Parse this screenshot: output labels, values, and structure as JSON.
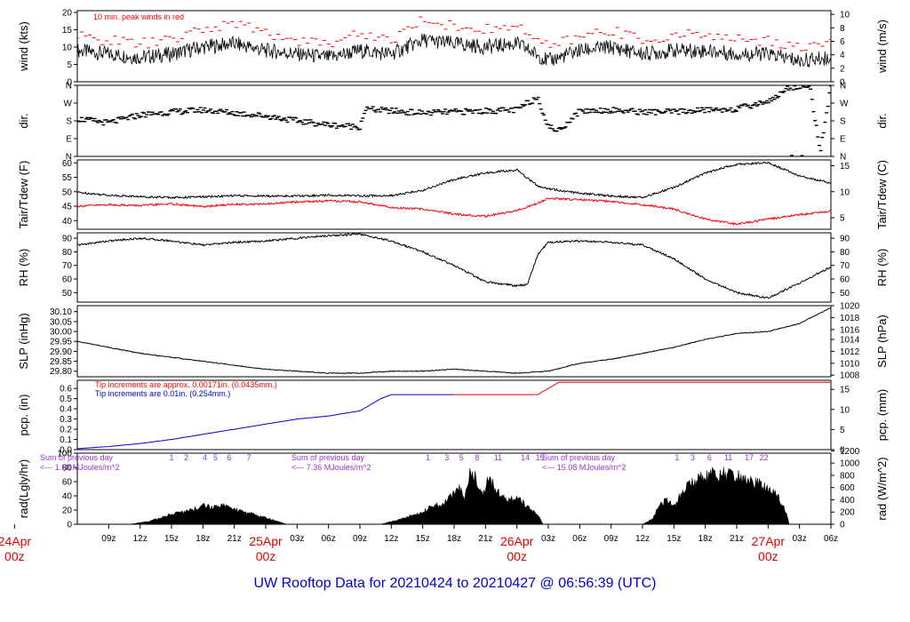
{
  "footer": {
    "title": "UW Rooftop Data for 20210424  to  20210427 @ 06:56:39  (UTC)"
  },
  "colors": {
    "black": "#000000",
    "red": "#ff0000",
    "blue": "#0000cc",
    "purple": "#9933cc",
    "date": "#dd0000"
  },
  "time_axis": {
    "unit": "hours since 2021-04-24 06:00 UTC",
    "range": [
      0,
      72
    ],
    "tick_labels": [
      {
        "t": 3,
        "label": "09z"
      },
      {
        "t": 6,
        "label": "12z"
      },
      {
        "t": 9,
        "label": "15z"
      },
      {
        "t": 12,
        "label": "18z"
      },
      {
        "t": 15,
        "label": "21z"
      },
      {
        "t": 21,
        "label": "03z"
      },
      {
        "t": 24,
        "label": "06z"
      },
      {
        "t": 27,
        "label": "09z"
      },
      {
        "t": 30,
        "label": "12z"
      },
      {
        "t": 33,
        "label": "15z"
      },
      {
        "t": 36,
        "label": "18z"
      },
      {
        "t": 39,
        "label": "21z"
      },
      {
        "t": 45,
        "label": "03z"
      },
      {
        "t": 48,
        "label": "06z"
      },
      {
        "t": 51,
        "label": "09z"
      },
      {
        "t": 54,
        "label": "12z"
      },
      {
        "t": 57,
        "label": "15z"
      },
      {
        "t": 60,
        "label": "18z"
      },
      {
        "t": 63,
        "label": "21z"
      },
      {
        "t": 69,
        "label": "03z"
      },
      {
        "t": 72,
        "label": "06z"
      }
    ],
    "date_labels": [
      {
        "t": -6,
        "date": "24Apr",
        "hour": "00z"
      },
      {
        "t": 18,
        "date": "25Apr",
        "hour": "00z"
      },
      {
        "t": 42,
        "date": "26Apr",
        "hour": "00z"
      },
      {
        "t": 66,
        "date": "27Apr",
        "hour": "00z"
      }
    ]
  },
  "chart_data": [
    {
      "id": "wind",
      "type": "line",
      "ylabel": "wind (kts)",
      "ylabel_right": "wind (m/s)",
      "ylim": [
        0,
        20.5
      ],
      "yticks": [
        0,
        5,
        10,
        15,
        20
      ],
      "right_ticks": [
        {
          "value": 0,
          "label": "0"
        },
        {
          "value": 3.89,
          "label": "2"
        },
        {
          "value": 7.78,
          "label": "4"
        },
        {
          "value": 11.66,
          "label": "6"
        },
        {
          "value": 15.55,
          "label": "8"
        },
        {
          "value": 19.44,
          "label": "10"
        }
      ],
      "annotations": [
        {
          "text": "10 min. peak winds in red",
          "color": "#ff0000"
        }
      ],
      "series": [
        {
          "kind": "line",
          "color": "#000000",
          "x": [
            0,
            3,
            6,
            9,
            12,
            15,
            18,
            21,
            24,
            27,
            30,
            33,
            36,
            39,
            42,
            45,
            48,
            51,
            54,
            57,
            60,
            63,
            66,
            69,
            72
          ],
          "y": [
            9,
            8,
            7,
            8,
            10,
            11,
            9,
            8,
            7,
            9,
            8,
            12,
            11,
            10,
            11,
            6,
            9,
            10,
            8,
            9,
            9,
            8,
            8,
            6,
            7
          ]
        },
        {
          "kind": "dashes",
          "color": "#ff0000",
          "x": [
            0,
            3,
            6,
            9,
            12,
            15,
            18,
            21,
            24,
            27,
            30,
            33,
            36,
            39,
            42,
            45,
            48,
            51,
            54,
            57,
            60,
            63,
            66,
            69,
            72
          ],
          "y": [
            13,
            12,
            11,
            12,
            15,
            17,
            14,
            12,
            11,
            14,
            12,
            18,
            16,
            15,
            16,
            10,
            13,
            15,
            12,
            13,
            14,
            12,
            12,
            10,
            11
          ]
        }
      ]
    },
    {
      "id": "dir",
      "type": "scatter",
      "ylabel": "dir.",
      "ylabel_right": "dir.",
      "ylim": [
        0,
        360
      ],
      "ytick_labels": [
        "N",
        "E",
        "S",
        "W",
        "N"
      ],
      "series": [
        {
          "kind": "dots",
          "color": "#000000",
          "x": [
            0,
            3,
            6,
            9,
            12,
            15,
            18,
            21,
            24,
            27,
            27.5,
            30,
            33,
            36,
            39,
            42,
            43,
            44,
            45,
            46,
            48,
            51,
            54,
            57,
            60,
            63,
            66,
            67,
            68,
            69,
            70,
            71,
            72
          ],
          "y": [
            190,
            170,
            210,
            225,
            235,
            220,
            205,
            180,
            160,
            150,
            240,
            230,
            220,
            225,
            230,
            235,
            270,
            300,
            150,
            130,
            230,
            235,
            225,
            225,
            235,
            240,
            280,
            310,
            350,
            355,
            350,
            25,
            355
          ]
        }
      ]
    },
    {
      "id": "temp",
      "type": "line",
      "ylabel": "Tair/Tdew (F)",
      "ylabel_right": "Tair/Tdew (C)",
      "ylim": [
        37,
        61
      ],
      "yticks": [
        40,
        45,
        50,
        55,
        60
      ],
      "right_ticks": [
        {
          "value": 41,
          "label": "5"
        },
        {
          "value": 50,
          "label": "10"
        },
        {
          "value": 59,
          "label": "15"
        }
      ],
      "series": [
        {
          "kind": "line",
          "name": "Tair",
          "color": "#000000",
          "x": [
            0,
            3,
            6,
            9,
            12,
            15,
            18,
            21,
            24,
            27,
            30,
            33,
            36,
            39,
            42,
            44,
            45,
            48,
            51,
            54,
            57,
            60,
            63,
            66,
            69,
            72
          ],
          "y": [
            49.8,
            48.8,
            48.3,
            48.0,
            48.2,
            48.6,
            48.5,
            48.5,
            48.8,
            48.6,
            48.6,
            50.5,
            54.2,
            56.5,
            57.5,
            52.0,
            51.0,
            49.5,
            48.5,
            48.0,
            51.5,
            56.5,
            59.5,
            60.0,
            55.5,
            53.0
          ]
        },
        {
          "kind": "line",
          "name": "Tdew",
          "color": "#ff0000",
          "x": [
            0,
            3,
            6,
            9,
            12,
            15,
            18,
            21,
            24,
            27,
            30,
            33,
            36,
            39,
            42,
            44,
            45,
            48,
            51,
            54,
            57,
            60,
            63,
            66,
            69,
            72
          ],
          "y": [
            45.0,
            45.5,
            45.2,
            45.8,
            44.8,
            45.7,
            45.7,
            46.5,
            46.8,
            46.5,
            44.5,
            44.0,
            42.3,
            41.5,
            43.5,
            46.0,
            47.7,
            47.2,
            46.6,
            45.5,
            44.0,
            40.5,
            38.8,
            40.5,
            42.0,
            43.3
          ]
        }
      ]
    },
    {
      "id": "rh",
      "type": "line",
      "ylabel": "RH (%)",
      "ylabel_right": "RH (%)",
      "ylim": [
        43,
        94
      ],
      "yticks": [
        50,
        60,
        70,
        80,
        90
      ],
      "series": [
        {
          "kind": "line",
          "color": "#000000",
          "x": [
            0,
            3,
            6,
            9,
            12,
            15,
            18,
            21,
            24,
            27,
            30,
            33,
            36,
            39,
            42,
            43,
            44,
            45,
            48,
            51,
            54,
            57,
            60,
            63,
            66,
            69,
            72
          ],
          "y": [
            85,
            88,
            90,
            88,
            85,
            87,
            88,
            90,
            92,
            93,
            88,
            80,
            70,
            58,
            55,
            56,
            78,
            87,
            88,
            87,
            85,
            75,
            60,
            50,
            46,
            57,
            69
          ]
        }
      ]
    },
    {
      "id": "slp",
      "type": "line",
      "ylabel": "SLP (inHg)",
      "ylabel_right": "SLP (hPa)",
      "ylim": [
        29.772,
        30.13
      ],
      "yticks": [
        29.8,
        29.85,
        29.9,
        29.95,
        30.0,
        30.05,
        30.1
      ],
      "ytick_decimals": 2,
      "right_ticks": [
        {
          "value": 29.78,
          "label": "1008"
        },
        {
          "value": 29.84,
          "label": "1010"
        },
        {
          "value": 29.9,
          "label": "1012"
        },
        {
          "value": 29.96,
          "label": "1014"
        },
        {
          "value": 30.01,
          "label": "1016"
        },
        {
          "value": 30.07,
          "label": "1018"
        },
        {
          "value": 30.13,
          "label": "1020"
        }
      ],
      "series": [
        {
          "kind": "line",
          "color": "#000000",
          "x": [
            0,
            3,
            6,
            9,
            12,
            15,
            18,
            21,
            24,
            27,
            30,
            33,
            36,
            39,
            42,
            45,
            48,
            51,
            54,
            57,
            60,
            63,
            66,
            69,
            72
          ],
          "y": [
            29.95,
            29.92,
            29.89,
            29.87,
            29.85,
            29.83,
            29.81,
            29.8,
            29.79,
            29.79,
            29.8,
            29.8,
            29.81,
            29.8,
            29.79,
            29.8,
            29.84,
            29.86,
            29.89,
            29.92,
            29.96,
            29.99,
            30.0,
            30.04,
            30.12
          ]
        }
      ]
    },
    {
      "id": "pcp",
      "type": "line",
      "ylabel": "pcp. (in)",
      "ylabel_right": "pcp. (mm)",
      "ylim": [
        0,
        0.68
      ],
      "yticks": [
        0.0,
        0.1,
        0.2,
        0.3,
        0.4,
        0.5,
        0.6
      ],
      "ytick_decimals": 1,
      "right_ticks": [
        {
          "value": 0,
          "label": "0"
        },
        {
          "value": 0.197,
          "label": "5"
        },
        {
          "value": 0.394,
          "label": "10"
        },
        {
          "value": 0.591,
          "label": "15"
        }
      ],
      "annotations": [
        {
          "text": "Tip increments are approx. 0.00171in. (0.0435mm.)",
          "color": "#ff0000"
        },
        {
          "text": "Tip increments are 0.01in. (0.254mm.)",
          "color": "#0000cc"
        }
      ],
      "series": [
        {
          "kind": "line",
          "name": "0.01in tip",
          "color": "#0000cc",
          "x": [
            0,
            3,
            6,
            9,
            12,
            15,
            18,
            21,
            24,
            27,
            29,
            30,
            33,
            36
          ],
          "y": [
            0.01,
            0.03,
            0.06,
            0.1,
            0.15,
            0.2,
            0.25,
            0.3,
            0.33,
            0.38,
            0.5,
            0.54,
            0.54,
            0.54
          ]
        },
        {
          "kind": "line",
          "name": "0.00171in tip",
          "color": "#ff0000",
          "x": [
            36,
            39,
            42,
            44,
            45,
            46,
            48,
            51,
            54,
            57,
            60,
            63,
            66,
            69,
            72
          ],
          "y": [
            0.54,
            0.54,
            0.54,
            0.54,
            0.6,
            0.66,
            0.66,
            0.66,
            0.66,
            0.66,
            0.66,
            0.66,
            0.66,
            0.66,
            0.66
          ]
        }
      ]
    },
    {
      "id": "rad",
      "type": "area",
      "ylabel": "rad(Lgly/hr)",
      "ylabel_right": "rad (W/m^2)",
      "ylim": [
        0,
        100
      ],
      "yticks": [
        0,
        20,
        40,
        60,
        80,
        100
      ],
      "right_ticks": [
        {
          "value": 0,
          "label": "0"
        },
        {
          "value": 17.2,
          "label": "200"
        },
        {
          "value": 34.4,
          "label": "400"
        },
        {
          "value": 51.6,
          "label": "600"
        },
        {
          "value": 68.8,
          "label": "800"
        },
        {
          "value": 86,
          "label": "1000"
        },
        {
          "value": 103.2,
          "label": "1200"
        }
      ],
      "annotations": [
        {
          "text": "Sum of previous day",
          "color": "#9933cc"
        },
        {
          "text": "<--- 1.68 MJoules/m^2",
          "color": "#9933cc"
        },
        {
          "text": "Sum of previous day",
          "color": "#9933cc"
        },
        {
          "text": "<--- 7.36 MJoules/m^2",
          "color": "#9933cc"
        },
        {
          "text": "Sum of previous day",
          "color": "#9933cc"
        },
        {
          "text": "<--- 15.08 MJoules/m^2",
          "color": "#9933cc"
        }
      ],
      "hour_markers": [
        {
          "t": 9,
          "label": "1"
        },
        {
          "t": 10.4,
          "label": "2"
        },
        {
          "t": 12.2,
          "label": "4"
        },
        {
          "t": 13.2,
          "label": "5"
        },
        {
          "t": 14.5,
          "label": "6"
        },
        {
          "t": 16.4,
          "label": "7"
        },
        {
          "t": 33.5,
          "label": "1"
        },
        {
          "t": 35.3,
          "label": "3"
        },
        {
          "t": 36.7,
          "label": "5"
        },
        {
          "t": 38.2,
          "label": "8"
        },
        {
          "t": 40.2,
          "label": "11"
        },
        {
          "t": 42.8,
          "label": "14"
        },
        {
          "t": 44.2,
          "label": "15"
        },
        {
          "t": 57.3,
          "label": "1"
        },
        {
          "t": 58.8,
          "label": "3"
        },
        {
          "t": 60.4,
          "label": "6"
        },
        {
          "t": 62.2,
          "label": "11"
        },
        {
          "t": 64.2,
          "label": "17"
        },
        {
          "t": 65.6,
          "label": "22"
        }
      ],
      "series": [
        {
          "kind": "area",
          "color": "#000000",
          "x": [
            5,
            7,
            9,
            11,
            12,
            13,
            14,
            15,
            17,
            19,
            20,
            29,
            31,
            33,
            34,
            35,
            35.8,
            36.4,
            37,
            37.5,
            38,
            38.7,
            39.4,
            40,
            41,
            42,
            43,
            44,
            44.5,
            54,
            55,
            55.6,
            56.4,
            57,
            58,
            59,
            60,
            61,
            62,
            63,
            64,
            65,
            66,
            67,
            67.8,
            68,
            69
          ],
          "y": [
            0,
            5,
            15,
            22,
            28,
            25,
            30,
            22,
            14,
            5,
            0,
            0,
            8,
            18,
            28,
            30,
            45,
            58,
            38,
            80,
            72,
            45,
            70,
            50,
            35,
            40,
            25,
            15,
            0,
            0,
            8,
            30,
            35,
            25,
            55,
            65,
            72,
            75,
            73,
            70,
            66,
            60,
            52,
            40,
            15,
            0,
            0
          ]
        }
      ]
    }
  ]
}
